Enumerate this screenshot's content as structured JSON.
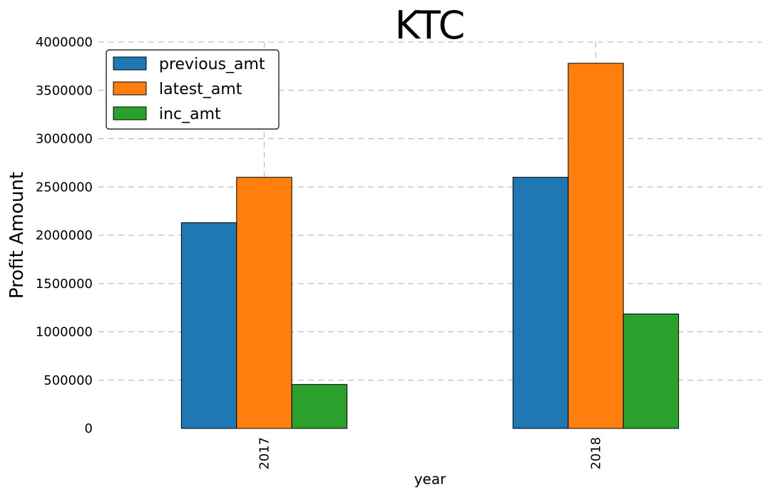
{
  "chart_data": {
    "type": "bar",
    "title": "KTC",
    "xlabel": "year",
    "ylabel": "Profit Amount",
    "categories": [
      "2017",
      "2018"
    ],
    "series": [
      {
        "name": "previous_amt",
        "color": "#1f77b4",
        "values": [
          2130000,
          2600000
        ]
      },
      {
        "name": "latest_amt",
        "color": "#ff7f0e",
        "values": [
          2600000,
          3780000
        ]
      },
      {
        "name": "inc_amt",
        "color": "#2ca02c",
        "values": [
          455000,
          1185000
        ]
      }
    ],
    "ylim": [
      0,
      4000000
    ],
    "yticks": [
      0,
      500000,
      1000000,
      1500000,
      2000000,
      2500000,
      3000000,
      3500000,
      4000000
    ],
    "ytick_labels": [
      "0",
      "500000",
      "1000000",
      "1500000",
      "2000000",
      "2500000",
      "3000000",
      "3500000",
      "4000000"
    ],
    "grid": true,
    "legend_position": "top-left"
  }
}
